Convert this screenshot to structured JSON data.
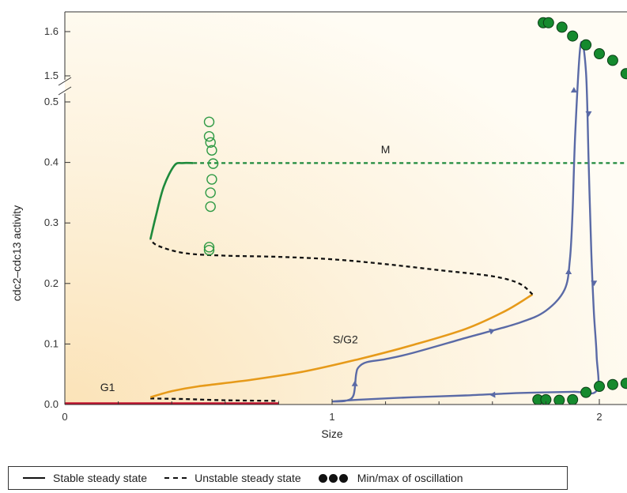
{
  "chart_data": {
    "type": "line",
    "xlabel": "Size",
    "ylabel": "cdc2–cdc13 activity",
    "xlim": [
      0,
      2.1
    ],
    "ylim_lower": [
      0,
      0.5
    ],
    "ylim_upper": [
      1.5,
      1.6
    ],
    "axis_break": true,
    "x_ticks": [
      {
        "value": 0,
        "label": "0"
      },
      {
        "value": 1,
        "label": "1"
      },
      {
        "value": 2,
        "label": "2"
      }
    ],
    "x_minor_ticks": [
      0.2,
      0.4,
      0.6,
      0.8,
      1.2,
      1.4,
      1.6,
      1.8
    ],
    "y_ticks_lower": [
      {
        "value": 0,
        "label": "0.0"
      },
      {
        "value": 0.1,
        "label": "0.1"
      },
      {
        "value": 0.2,
        "label": "0.2"
      },
      {
        "value": 0.3,
        "label": "0.3"
      },
      {
        "value": 0.4,
        "label": "0.4"
      },
      {
        "value": 0.5,
        "label": "0.5"
      }
    ],
    "y_ticks_upper": [
      {
        "value": 1.5,
        "label": "1.5"
      },
      {
        "value": 1.6,
        "label": "1.6"
      }
    ],
    "annotations": [
      {
        "text": "G1",
        "x": 0.16,
        "y": 0.022
      },
      {
        "text": "S/G2",
        "x": 1.05,
        "y": 0.101
      },
      {
        "text": "M",
        "x": 1.2,
        "y": 0.415
      }
    ],
    "series": [
      {
        "kind": "stable",
        "color": "#c0122e",
        "points": [
          [
            0,
            0.002
          ],
          [
            0.8,
            0.002
          ]
        ]
      },
      {
        "kind": "unstable",
        "color": "#111111",
        "points": [
          [
            0.32,
            0.01
          ],
          [
            0.45,
            0.009
          ],
          [
            0.6,
            0.007
          ],
          [
            0.8,
            0.006
          ]
        ]
      },
      {
        "kind": "stable",
        "color": "#e69a1a",
        "points": [
          [
            0.32,
            0.012
          ],
          [
            0.4,
            0.022
          ],
          [
            0.5,
            0.03
          ],
          [
            0.7,
            0.041
          ],
          [
            0.9,
            0.055
          ],
          [
            1.1,
            0.075
          ],
          [
            1.3,
            0.098
          ],
          [
            1.5,
            0.125
          ],
          [
            1.65,
            0.155
          ],
          [
            1.75,
            0.182
          ]
        ]
      },
      {
        "kind": "unstable",
        "color": "#111111",
        "points": [
          [
            1.75,
            0.182
          ],
          [
            1.7,
            0.2
          ],
          [
            1.6,
            0.212
          ],
          [
            1.4,
            0.222
          ],
          [
            1.2,
            0.232
          ],
          [
            1.0,
            0.24
          ],
          [
            0.8,
            0.244
          ],
          [
            0.6,
            0.246
          ],
          [
            0.45,
            0.25
          ],
          [
            0.35,
            0.262
          ],
          [
            0.32,
            0.273
          ]
        ]
      },
      {
        "kind": "stable",
        "color": "#1e8a3c",
        "points": [
          [
            0.32,
            0.273
          ],
          [
            0.34,
            0.31
          ],
          [
            0.37,
            0.36
          ],
          [
            0.41,
            0.395
          ],
          [
            0.44,
            0.399
          ],
          [
            0.48,
            0.399
          ]
        ]
      },
      {
        "kind": "unstable",
        "color": "#1e8a3c",
        "points": [
          [
            0.48,
            0.399
          ],
          [
            2.1,
            0.399
          ]
        ]
      }
    ],
    "trajectory": {
      "color": "#5a6aa6",
      "points": [
        [
          1.0,
          0.005
        ],
        [
          1.05,
          0.006
        ],
        [
          1.08,
          0.015
        ],
        [
          1.09,
          0.05
        ],
        [
          1.1,
          0.062
        ],
        [
          1.13,
          0.07
        ],
        [
          1.2,
          0.075
        ],
        [
          1.3,
          0.085
        ],
        [
          1.5,
          0.11
        ],
        [
          1.7,
          0.135
        ],
        [
          1.8,
          0.155
        ],
        [
          1.87,
          0.19
        ],
        [
          1.89,
          0.24
        ],
        [
          1.9,
          0.32
        ],
        [
          1.91,
          0.45
        ],
        [
          1.93,
          1.57
        ],
        [
          1.95,
          0.55
        ],
        [
          1.96,
          0.4
        ],
        [
          1.97,
          0.25
        ],
        [
          1.98,
          0.15
        ],
        [
          1.99,
          0.08
        ],
        [
          1.99,
          0.023
        ],
        [
          1.9,
          0.021
        ],
        [
          1.7,
          0.019
        ],
        [
          1.5,
          0.015
        ],
        [
          1.3,
          0.012
        ],
        [
          1.1,
          0.008
        ],
        [
          1.0,
          0.005
        ]
      ]
    },
    "oscillation_minmax_open": [
      [
        0.54,
        0.467
      ],
      [
        0.54,
        0.443
      ],
      [
        0.545,
        0.433
      ],
      [
        0.55,
        0.42
      ],
      [
        0.555,
        0.398
      ],
      [
        0.55,
        0.372
      ],
      [
        0.545,
        0.35
      ],
      [
        0.545,
        0.327
      ],
      [
        0.54,
        0.26
      ],
      [
        0.54,
        0.255
      ]
    ],
    "oscillation_minmax_filled": [
      [
        1.79,
        1.62
      ],
      [
        1.81,
        1.62
      ],
      [
        1.86,
        1.61
      ],
      [
        1.9,
        1.59
      ],
      [
        1.95,
        1.57
      ],
      [
        2.0,
        1.55
      ],
      [
        2.05,
        1.535
      ],
      [
        2.1,
        1.505
      ],
      [
        1.77,
        0.008
      ],
      [
        1.8,
        0.008
      ],
      [
        1.85,
        0.007
      ],
      [
        1.9,
        0.008
      ],
      [
        1.95,
        0.02
      ],
      [
        2.0,
        0.03
      ],
      [
        2.05,
        0.033
      ],
      [
        2.1,
        0.035
      ]
    ]
  },
  "legend": {
    "stable_label": "Stable steady state",
    "unstable_label": "Unstable steady state",
    "oscillation_label": "Min/max of oscillation"
  },
  "colors": {
    "background_warm": "#fce8c4",
    "background_light": "#fffdf7",
    "green_open": "#2e9a44",
    "green_filled": "#158a2e"
  }
}
